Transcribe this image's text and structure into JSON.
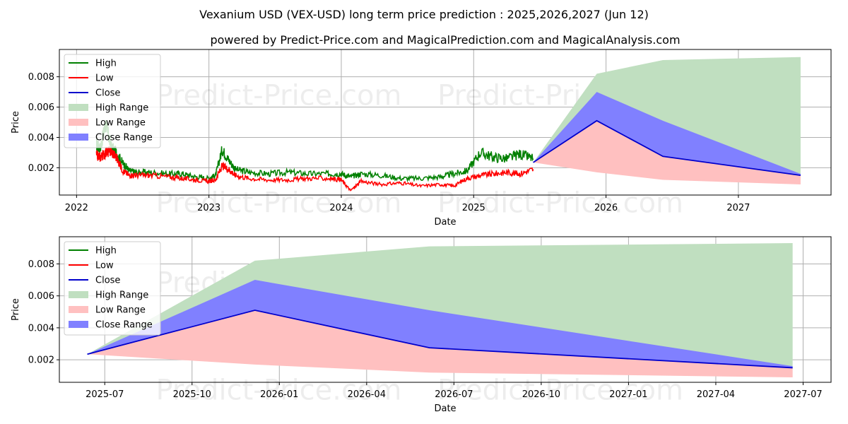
{
  "title": "Vexanium USD (VEX-USD) long term price prediction : 2025,2026,2027 (Jun 12)",
  "subtitle": "powered by Predict-Price.com and MagicalPrediction.com and MagicalAnalysis.com",
  "watermark": "Predict-Price.com",
  "legend": [
    {
      "label": "High",
      "color": "#008000",
      "kind": "line"
    },
    {
      "label": "Low",
      "color": "#ff0000",
      "kind": "line"
    },
    {
      "label": "Close",
      "color": "#0000cc",
      "kind": "line"
    },
    {
      "label": "High Range",
      "color": "#c0dfc0",
      "kind": "patch"
    },
    {
      "label": "Low Range",
      "color": "#ffc0c0",
      "kind": "patch"
    },
    {
      "label": "Close Range",
      "color": "#8080ff",
      "kind": "patch"
    }
  ],
  "chart_data": [
    {
      "type": "line",
      "xlabel": "Date",
      "ylabel": "Price",
      "xlim": [
        2021.87,
        2027.7
      ],
      "ylim": [
        0.0002,
        0.0098
      ],
      "xticks": [
        2022,
        2023,
        2024,
        2025,
        2026,
        2027
      ],
      "xtick_labels": [
        "2022",
        "2023",
        "2024",
        "2025",
        "2026",
        "2027"
      ],
      "yticks": [
        0.002,
        0.004,
        0.006,
        0.008
      ],
      "ytick_labels": [
        "0.002",
        "0.004",
        "0.006",
        "0.008"
      ],
      "grid": true,
      "legend_position": "top-left",
      "history": {
        "x": [
          2022.15,
          2022.18,
          2022.22,
          2022.26,
          2022.3,
          2022.35,
          2022.4,
          2022.45,
          2022.55,
          2022.7,
          2022.8,
          2022.9,
          2023.0,
          2023.05,
          2023.1,
          2023.15,
          2023.2,
          2023.3,
          2023.45,
          2023.6,
          2023.75,
          2023.9,
          2024.0,
          2024.07,
          2024.15,
          2024.3,
          2024.45,
          2024.6,
          2024.75,
          2024.85,
          2024.95,
          2025.05,
          2025.15,
          2025.25,
          2025.35,
          2025.45
        ],
        "high": [
          0.0035,
          0.0033,
          0.0049,
          0.0034,
          0.003,
          0.0023,
          0.0018,
          0.0017,
          0.0017,
          0.0016,
          0.0016,
          0.0014,
          0.0013,
          0.0015,
          0.0032,
          0.0025,
          0.0019,
          0.0017,
          0.0016,
          0.0017,
          0.0016,
          0.0016,
          0.0016,
          0.0014,
          0.0016,
          0.0015,
          0.0013,
          0.0013,
          0.0014,
          0.0016,
          0.0018,
          0.003,
          0.0027,
          0.0026,
          0.0029,
          0.0026
        ],
        "low": [
          0.0028,
          0.0027,
          0.003,
          0.0031,
          0.0027,
          0.0018,
          0.0015,
          0.0015,
          0.0015,
          0.0014,
          0.0013,
          0.0012,
          0.0011,
          0.0012,
          0.0021,
          0.0019,
          0.0015,
          0.0013,
          0.0012,
          0.0012,
          0.0013,
          0.0013,
          0.0012,
          0.0005,
          0.0011,
          0.0009,
          0.001,
          0.0008,
          0.0009,
          0.0008,
          0.0013,
          0.0015,
          0.0016,
          0.0017,
          0.0016,
          0.0019
        ]
      },
      "prediction": {
        "x": [
          2025.45,
          2025.93,
          2026.43,
          2027.47
        ],
        "close": [
          0.00235,
          0.0051,
          0.00275,
          0.0015
        ],
        "high_range_upper": [
          0.00235,
          0.0082,
          0.0091,
          0.0093
        ],
        "close_range_upper": [
          0.00235,
          0.007,
          0.0051,
          0.0016
        ],
        "low_range_lower": [
          0.00235,
          0.0017,
          0.0012,
          0.0009
        ]
      }
    },
    {
      "type": "line",
      "xlabel": "Date",
      "ylabel": "Price",
      "xlim": [
        2025.37,
        2027.58
      ],
      "ylim": [
        0.00059,
        0.0097
      ],
      "xticks": [
        2025.5,
        2025.75,
        2026.0,
        2026.25,
        2026.5,
        2026.75,
        2027.0,
        2027.25,
        2027.5
      ],
      "xtick_labels": [
        "2025-07",
        "2025-10",
        "2026-01",
        "2026-04",
        "2026-07",
        "2026-10",
        "2027-01",
        "2027-04",
        "2027-07"
      ],
      "yticks": [
        0.002,
        0.004,
        0.006,
        0.008
      ],
      "ytick_labels": [
        "0.002",
        "0.004",
        "0.006",
        "0.008"
      ],
      "grid": true,
      "legend_position": "top-left",
      "prediction": {
        "x": [
          2025.45,
          2025.93,
          2026.43,
          2027.47
        ],
        "close": [
          0.00235,
          0.0051,
          0.00275,
          0.0015
        ],
        "high_range_upper": [
          0.00235,
          0.0082,
          0.0091,
          0.0093
        ],
        "close_range_upper": [
          0.00235,
          0.007,
          0.0051,
          0.0016
        ],
        "low_range_lower": [
          0.00235,
          0.0017,
          0.0012,
          0.0009
        ]
      }
    }
  ]
}
